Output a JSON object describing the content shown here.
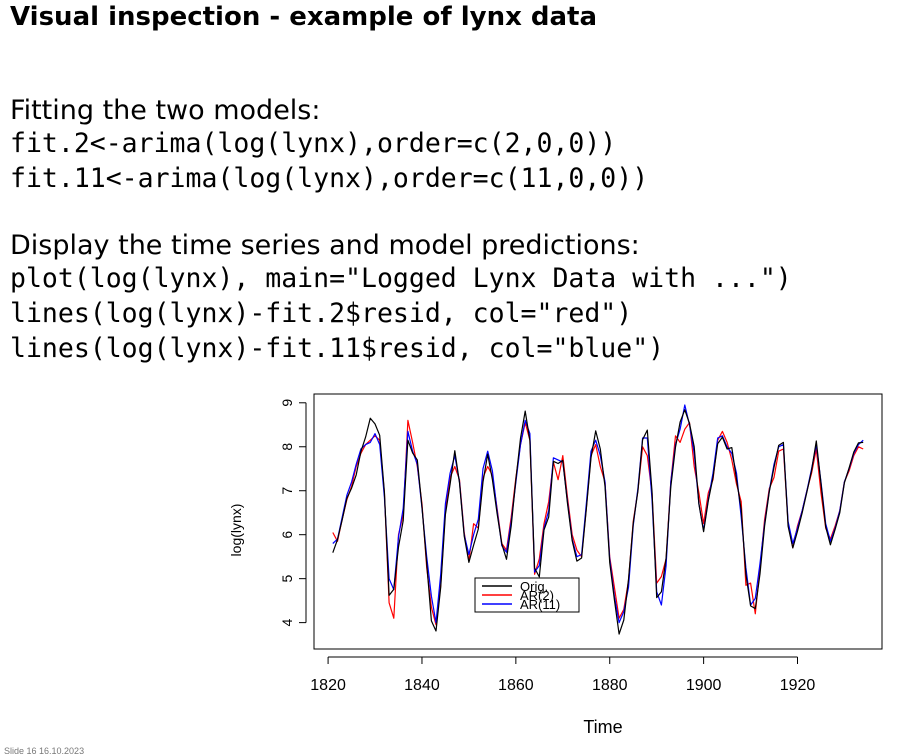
{
  "slide": {
    "title": "Visual inspection - example of lynx data",
    "fit_heading": "Fitting the two models:",
    "fit_code": [
      "fit.2<-arima(log(lynx),order=c(2,0,0))",
      "fit.11<-arima(log(lynx),order=c(11,0,0))"
    ],
    "display_heading": "Display the time series and model predictions:",
    "display_code": [
      "plot(log(lynx), main=\"Logged Lynx Data with ...\")",
      "lines(log(lynx)-fit.2$resid, col=\"red\")",
      "lines(log(lynx)-fit.11$resid, col=\"blue\")"
    ],
    "footer": "Slide 16  16.10.2023"
  },
  "chart_data": {
    "type": "line",
    "title": "",
    "xlabel": "Time",
    "ylabel": "log(lynx)",
    "xlim": [
      1817,
      1938
    ],
    "ylim": [
      3.4,
      9.2
    ],
    "xticks": [
      1820,
      1840,
      1860,
      1880,
      1900,
      1920
    ],
    "yticks": [
      4,
      5,
      6,
      7,
      8,
      9
    ],
    "grid": false,
    "legend_position": "bottom-center",
    "colors": {
      "Orig.": "#000000",
      "AR(2)": "#ff0000",
      "AR(11)": "#0000ff"
    },
    "x": [
      1821,
      1822,
      1823,
      1824,
      1825,
      1826,
      1827,
      1828,
      1829,
      1830,
      1831,
      1832,
      1833,
      1834,
      1835,
      1836,
      1837,
      1838,
      1839,
      1840,
      1841,
      1842,
      1843,
      1844,
      1845,
      1846,
      1847,
      1848,
      1849,
      1850,
      1851,
      1852,
      1853,
      1854,
      1855,
      1856,
      1857,
      1858,
      1859,
      1860,
      1861,
      1862,
      1863,
      1864,
      1865,
      1866,
      1867,
      1868,
      1869,
      1870,
      1871,
      1872,
      1873,
      1874,
      1875,
      1876,
      1877,
      1878,
      1879,
      1880,
      1881,
      1882,
      1883,
      1884,
      1885,
      1886,
      1887,
      1888,
      1889,
      1890,
      1891,
      1892,
      1893,
      1894,
      1895,
      1896,
      1897,
      1898,
      1899,
      1900,
      1901,
      1902,
      1903,
      1904,
      1905,
      1906,
      1907,
      1908,
      1909,
      1910,
      1911,
      1912,
      1913,
      1914,
      1915,
      1916,
      1917,
      1918,
      1919,
      1920,
      1921,
      1922,
      1923,
      1924,
      1925,
      1926,
      1927,
      1928,
      1929,
      1930,
      1931,
      1932,
      1933,
      1934
    ],
    "series": [
      {
        "name": "Orig.",
        "values": [
          5.59,
          5.89,
          6.34,
          6.83,
          7.06,
          7.36,
          7.89,
          8.22,
          8.65,
          8.52,
          8.26,
          6.97,
          4.62,
          4.76,
          5.72,
          6.32,
          8.15,
          7.86,
          7.7,
          6.63,
          5.35,
          4.04,
          3.81,
          4.8,
          6.46,
          7.15,
          7.91,
          7.18,
          5.97,
          5.37,
          5.76,
          6.13,
          7.2,
          7.83,
          7.25,
          6.48,
          5.79,
          5.44,
          6.2,
          7.26,
          8.19,
          8.81,
          8.14,
          5.24,
          5.04,
          6.11,
          6.4,
          7.67,
          7.62,
          7.69,
          6.71,
          5.86,
          5.4,
          5.47,
          6.58,
          7.75,
          8.36,
          7.95,
          7.1,
          5.37,
          4.52,
          3.74,
          4.06,
          4.98,
          6.25,
          6.99,
          8.16,
          8.38,
          6.99,
          4.57,
          4.7,
          5.47,
          7.09,
          7.99,
          8.56,
          8.84,
          8.53,
          8.0,
          6.7,
          6.07,
          6.77,
          7.3,
          8.07,
          8.22,
          7.95,
          7.98,
          7.26,
          6.57,
          5.1,
          4.38,
          4.32,
          5.11,
          6.2,
          6.98,
          7.53,
          8.03,
          8.1,
          6.19,
          5.7,
          6.08,
          6.5,
          6.97,
          7.46,
          8.13,
          7.16,
          6.18,
          5.77,
          6.12,
          6.5,
          7.18,
          7.52,
          7.88,
          8.09,
          8.1
        ]
      },
      {
        "name": "AR(2)",
        "values": [
          6.05,
          5.85,
          6.35,
          6.8,
          7.1,
          7.55,
          7.85,
          8.05,
          8.15,
          8.25,
          8.15,
          6.95,
          4.45,
          4.1,
          6.0,
          6.45,
          8.6,
          8.1,
          7.55,
          6.7,
          5.25,
          4.35,
          3.95,
          4.85,
          6.55,
          7.3,
          7.55,
          7.25,
          6.05,
          5.4,
          6.25,
          6.15,
          7.3,
          7.55,
          7.35,
          6.6,
          5.8,
          5.65,
          6.4,
          7.3,
          8.05,
          8.55,
          8.15,
          5.1,
          5.45,
          6.25,
          6.75,
          7.65,
          7.25,
          7.8,
          6.85,
          6.0,
          5.65,
          5.5,
          6.6,
          7.8,
          8.05,
          7.55,
          7.2,
          5.5,
          4.8,
          4.1,
          4.3,
          4.95,
          6.3,
          7.0,
          8.0,
          7.8,
          6.95,
          4.9,
          5.05,
          5.45,
          7.2,
          8.25,
          8.1,
          8.4,
          8.55,
          7.55,
          6.95,
          6.25,
          6.95,
          7.25,
          8.15,
          8.35,
          8.1,
          7.7,
          7.15,
          6.75,
          4.85,
          4.9,
          4.2,
          5.25,
          6.35,
          7.05,
          7.3,
          7.9,
          7.95,
          6.25,
          5.7,
          6.2,
          6.55,
          7.0,
          7.4,
          7.95,
          6.95,
          6.15,
          5.9,
          6.2,
          6.55,
          7.2,
          7.45,
          7.8,
          8.0,
          7.95
        ]
      },
      {
        "name": "AR(11)",
        "values": [
          5.8,
          5.9,
          6.4,
          6.9,
          7.2,
          7.6,
          7.95,
          8.05,
          8.1,
          8.3,
          8.05,
          6.85,
          5.0,
          4.75,
          5.95,
          6.6,
          8.35,
          7.9,
          7.6,
          6.6,
          5.5,
          4.6,
          4.0,
          5.1,
          6.7,
          7.4,
          7.8,
          7.2,
          6.0,
          5.55,
          6.0,
          6.35,
          7.5,
          7.9,
          7.45,
          6.55,
          5.75,
          5.6,
          6.3,
          7.2,
          8.05,
          8.6,
          8.3,
          5.15,
          5.3,
          6.15,
          6.55,
          7.75,
          7.7,
          7.65,
          6.75,
          5.9,
          5.5,
          5.55,
          6.7,
          7.9,
          8.15,
          7.8,
          7.2,
          5.45,
          4.6,
          4.0,
          4.25,
          4.8,
          6.2,
          7.05,
          8.2,
          8.2,
          6.8,
          4.7,
          4.4,
          5.3,
          7.2,
          8.05,
          8.4,
          8.95,
          8.5,
          7.85,
          6.7,
          6.1,
          6.8,
          7.4,
          8.2,
          8.25,
          8.0,
          7.85,
          7.4,
          6.4,
          5.25,
          4.4,
          4.55,
          5.35,
          6.25,
          7.0,
          7.6,
          8.0,
          8.05,
          6.3,
          5.8,
          6.15,
          6.55,
          7.0,
          7.5,
          8.05,
          7.2,
          6.25,
          5.85,
          6.15,
          6.55,
          7.2,
          7.5,
          7.85,
          8.05,
          8.15
        ]
      }
    ]
  }
}
